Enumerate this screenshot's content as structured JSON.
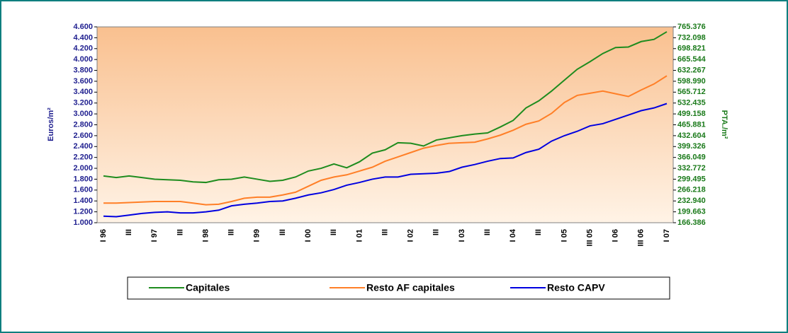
{
  "chart_data": {
    "type": "line",
    "y_label": "Euros/m²",
    "y2_label": "PTA./m²",
    "categories": [
      "I 96",
      null,
      "III",
      null,
      "I 97",
      null,
      "III",
      null,
      "I 98",
      null,
      "III",
      null,
      "I 99",
      null,
      "III",
      null,
      "I 00",
      null,
      "III",
      null,
      "I 01",
      null,
      "III",
      null,
      "I 02",
      null,
      "III",
      null,
      "I 03",
      null,
      "III",
      null,
      "I 04",
      null,
      "III",
      null,
      "I 05",
      null,
      "III 05",
      null,
      "I 06",
      null,
      "III 06",
      null,
      "I 07"
    ],
    "series": [
      {
        "name": "Capitales",
        "color": "#1e8c1e",
        "values": [
          1860,
          1830,
          1860,
          1830,
          1800,
          1790,
          1780,
          1750,
          1740,
          1790,
          1800,
          1840,
          1800,
          1760,
          1780,
          1840,
          1950,
          2000,
          2080,
          2010,
          2120,
          2280,
          2340,
          2470,
          2460,
          2410,
          2520,
          2560,
          2600,
          2630,
          2650,
          2760,
          2880,
          3110,
          3240,
          3420,
          3620,
          3820,
          3960,
          4110,
          4220,
          4230,
          4330,
          4370,
          4510
        ]
      },
      {
        "name": "Resto AF capitales",
        "color": "#ff7f27",
        "values": [
          1360,
          1360,
          1370,
          1380,
          1390,
          1390,
          1390,
          1360,
          1330,
          1340,
          1390,
          1450,
          1470,
          1470,
          1510,
          1560,
          1670,
          1780,
          1840,
          1880,
          1950,
          2020,
          2130,
          2210,
          2290,
          2370,
          2420,
          2460,
          2470,
          2480,
          2540,
          2610,
          2700,
          2810,
          2870,
          3010,
          3210,
          3340,
          3380,
          3420,
          3370,
          3320,
          3440,
          3550,
          3700
        ]
      },
      {
        "name": "Resto CAPV",
        "color": "#0000e0",
        "values": [
          1120,
          1110,
          1140,
          1170,
          1190,
          1200,
          1180,
          1180,
          1200,
          1230,
          1310,
          1340,
          1360,
          1390,
          1400,
          1450,
          1510,
          1550,
          1610,
          1690,
          1740,
          1800,
          1840,
          1840,
          1890,
          1900,
          1910,
          1940,
          2020,
          2070,
          2130,
          2180,
          2190,
          2290,
          2350,
          2500,
          2600,
          2680,
          2780,
          2820,
          2900,
          2980,
          3060,
          3110,
          3190
        ]
      }
    ],
    "ylim": [
      1000,
      4600
    ],
    "yticks": [
      {
        "value": 1000,
        "label": "1.000"
      },
      {
        "value": 1200,
        "label": "1.200"
      },
      {
        "value": 1400,
        "label": "1.400"
      },
      {
        "value": 1600,
        "label": "1.600"
      },
      {
        "value": 1800,
        "label": "1.800"
      },
      {
        "value": 2000,
        "label": "2.000"
      },
      {
        "value": 2200,
        "label": "2.200"
      },
      {
        "value": 2400,
        "label": "2.400"
      },
      {
        "value": 2600,
        "label": "2.600"
      },
      {
        "value": 2800,
        "label": "2.800"
      },
      {
        "value": 3000,
        "label": "3.000"
      },
      {
        "value": 3200,
        "label": "3.200"
      },
      {
        "value": 3400,
        "label": "3.400"
      },
      {
        "value": 3600,
        "label": "3.600"
      },
      {
        "value": 3800,
        "label": "3.800"
      },
      {
        "value": 4000,
        "label": "4.000"
      },
      {
        "value": 4200,
        "label": "4.200"
      },
      {
        "value": 4400,
        "label": "4.400"
      },
      {
        "value": 4600,
        "label": "4.600"
      }
    ],
    "y2lim": [
      166386,
      765376
    ],
    "y2ticks": [
      {
        "value": 166386,
        "label": "166.386"
      },
      {
        "value": 199663,
        "label": "199.663"
      },
      {
        "value": 232940,
        "label": "232.940"
      },
      {
        "value": 266218,
        "label": "266.218"
      },
      {
        "value": 299495,
        "label": "299.495"
      },
      {
        "value": 332772,
        "label": "332.772"
      },
      {
        "value": 366049,
        "label": "366.049"
      },
      {
        "value": 399326,
        "label": "399.326"
      },
      {
        "value": 432604,
        "label": "432.604"
      },
      {
        "value": 465881,
        "label": "465.881"
      },
      {
        "value": 499158,
        "label": "499.158"
      },
      {
        "value": 532435,
        "label": "532.435"
      },
      {
        "value": 565712,
        "label": "565.712"
      },
      {
        "value": 598990,
        "label": "598.990"
      },
      {
        "value": 632267,
        "label": "632.267"
      },
      {
        "value": 665544,
        "label": "665.544"
      },
      {
        "value": 698821,
        "label": "698.821"
      },
      {
        "value": 732098,
        "label": "732.098"
      },
      {
        "value": 765376,
        "label": "765.376"
      }
    ],
    "legend": "bottom"
  }
}
